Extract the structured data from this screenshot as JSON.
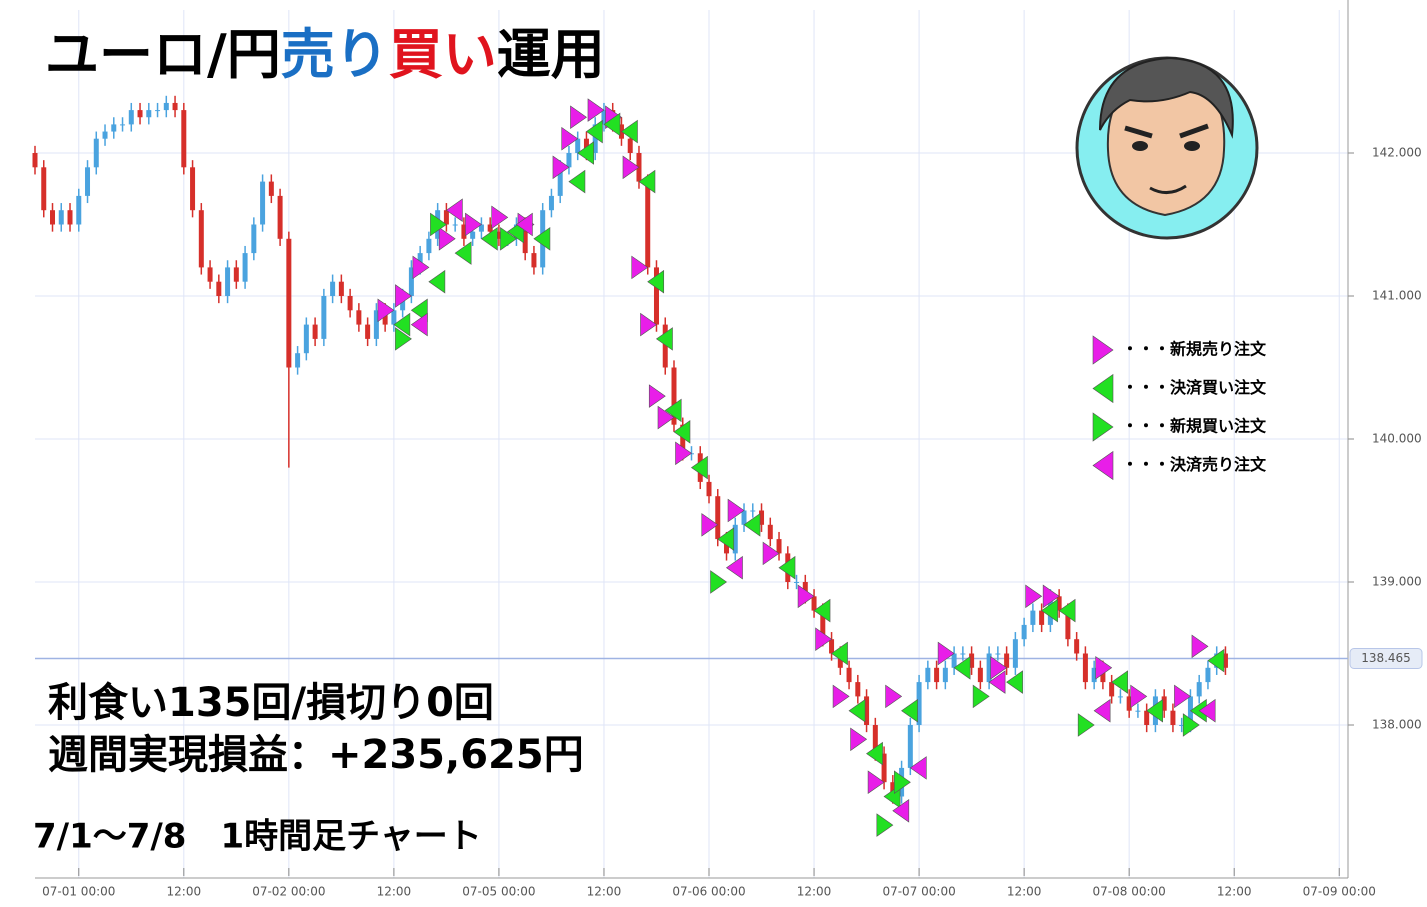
{
  "chart_data": {
    "type": "candlestick",
    "title_parts": [
      {
        "text": "ユーロ/円",
        "color": "#000000"
      },
      {
        "text": "売り",
        "color": "#1a6fc4"
      },
      {
        "text": "買い",
        "color": "#e0141e"
      },
      {
        "text": "運用",
        "color": "#000000"
      }
    ],
    "annotations": [
      "利食い135回/損切り0回",
      "週間実現損益：+235,625円",
      "7/1〜7/8　1時間足チャート"
    ],
    "up_color": "#4aa3df",
    "down_color": "#d62f2a",
    "grid": true,
    "xlim": [
      -5,
      145
    ],
    "ylim": [
      137,
      143
    ],
    "xticks": [
      {
        "value": 0,
        "label": "07-01 00:00"
      },
      {
        "value": 12,
        "label": "12:00"
      },
      {
        "value": 24,
        "label": "07-02 00:00"
      },
      {
        "value": 36,
        "label": "12:00"
      },
      {
        "value": 48,
        "label": "07-05 00:00"
      },
      {
        "value": 60,
        "label": "12:00"
      },
      {
        "value": 72,
        "label": "07-06 00:00"
      },
      {
        "value": 84,
        "label": "12:00"
      },
      {
        "value": 96,
        "label": "07-07 00:00"
      },
      {
        "value": 108,
        "label": "12:00"
      },
      {
        "value": 120,
        "label": "07-08 00:00"
      },
      {
        "value": 132,
        "label": "12:00"
      },
      {
        "value": 144,
        "label": "07-09 00:00"
      }
    ],
    "yticks": [
      {
        "value": 138,
        "label": "138.000"
      },
      {
        "value": 139,
        "label": "139.000"
      },
      {
        "value": 140,
        "label": "140.000"
      },
      {
        "value": 141,
        "label": "141.000"
      },
      {
        "value": 142,
        "label": "142.000"
      }
    ],
    "last_price": 138.465,
    "x": [
      -5,
      -4,
      -3,
      -2,
      -1,
      0,
      1,
      2,
      3,
      4,
      5,
      6,
      7,
      8,
      9,
      10,
      11,
      12,
      13,
      14,
      15,
      16,
      17,
      18,
      19,
      20,
      21,
      22,
      23,
      24,
      25,
      26,
      27,
      28,
      29,
      30,
      31,
      32,
      33,
      34,
      35,
      36,
      37,
      38,
      39,
      40,
      41,
      42,
      43,
      44,
      45,
      46,
      47,
      48,
      49,
      50,
      51,
      52,
      53,
      54,
      55,
      56,
      57,
      58,
      59,
      60,
      61,
      62,
      63,
      64,
      65,
      66,
      67,
      68,
      69,
      70,
      71,
      72,
      73,
      74,
      75,
      76,
      77,
      78,
      79,
      80,
      81,
      82,
      83,
      84,
      85,
      86,
      87,
      88,
      89,
      90,
      91,
      92,
      93,
      94,
      95,
      96,
      97,
      98,
      99,
      100,
      101,
      102,
      103,
      104,
      105,
      106,
      107,
      108,
      109,
      110,
      111,
      112,
      113,
      114,
      115,
      116,
      117,
      118,
      119,
      120,
      121,
      122,
      123,
      124,
      125,
      126,
      127,
      128,
      129,
      130,
      131
    ],
    "ohlc": [
      [
        142.0,
        142.05,
        141.85,
        141.9
      ],
      [
        141.9,
        141.95,
        141.55,
        141.6
      ],
      [
        141.6,
        141.65,
        141.45,
        141.5
      ],
      [
        141.5,
        141.65,
        141.45,
        141.6
      ],
      [
        141.6,
        141.65,
        141.45,
        141.5
      ],
      [
        141.5,
        141.75,
        141.45,
        141.7
      ],
      [
        141.7,
        141.95,
        141.65,
        141.9
      ],
      [
        141.9,
        142.15,
        141.85,
        142.1
      ],
      [
        142.1,
        142.2,
        142.05,
        142.15
      ],
      [
        142.15,
        142.25,
        142.1,
        142.2
      ],
      [
        142.2,
        142.25,
        142.15,
        142.2
      ],
      [
        142.2,
        142.35,
        142.15,
        142.3
      ],
      [
        142.3,
        142.35,
        142.2,
        142.25
      ],
      [
        142.25,
        142.35,
        142.2,
        142.3
      ],
      [
        142.3,
        142.35,
        142.25,
        142.3
      ],
      [
        142.3,
        142.4,
        142.25,
        142.35
      ],
      [
        142.35,
        142.4,
        142.25,
        142.3
      ],
      [
        142.3,
        142.35,
        141.85,
        141.9
      ],
      [
        141.9,
        141.95,
        141.55,
        141.6
      ],
      [
        141.6,
        141.65,
        141.15,
        141.2
      ],
      [
        141.2,
        141.25,
        141.05,
        141.1
      ],
      [
        141.1,
        141.15,
        140.95,
        141.0
      ],
      [
        141.0,
        141.25,
        140.95,
        141.2
      ],
      [
        141.2,
        141.25,
        141.05,
        141.1
      ],
      [
        141.1,
        141.35,
        141.05,
        141.3
      ],
      [
        141.3,
        141.55,
        141.25,
        141.5
      ],
      [
        141.5,
        141.85,
        141.45,
        141.8
      ],
      [
        141.8,
        141.85,
        141.65,
        141.7
      ],
      [
        141.7,
        141.75,
        141.35,
        141.4
      ],
      [
        141.4,
        141.45,
        139.8,
        140.5
      ],
      [
        140.5,
        140.65,
        140.45,
        140.6
      ],
      [
        140.6,
        140.85,
        140.55,
        140.8
      ],
      [
        140.8,
        140.85,
        140.65,
        140.7
      ],
      [
        140.7,
        141.05,
        140.65,
        141.0
      ],
      [
        141.0,
        141.15,
        140.95,
        141.1
      ],
      [
        141.1,
        141.15,
        140.95,
        141.0
      ],
      [
        141.0,
        141.05,
        140.85,
        140.9
      ],
      [
        140.9,
        140.95,
        140.75,
        140.8
      ],
      [
        140.8,
        140.85,
        140.65,
        140.7
      ],
      [
        140.7,
        140.95,
        140.65,
        140.9
      ],
      [
        140.9,
        140.95,
        140.75,
        140.8
      ],
      [
        140.8,
        140.95,
        140.75,
        140.9
      ],
      [
        140.9,
        141.05,
        140.85,
        141.0
      ],
      [
        141.0,
        141.25,
        140.95,
        141.2
      ],
      [
        141.2,
        141.35,
        141.15,
        141.3
      ],
      [
        141.3,
        141.45,
        141.25,
        141.4
      ],
      [
        141.4,
        141.65,
        141.35,
        141.6
      ],
      [
        141.6,
        141.65,
        141.45,
        141.5
      ],
      [
        141.5,
        141.55,
        141.45,
        141.5
      ],
      [
        141.5,
        141.55,
        141.35,
        141.4
      ],
      [
        141.4,
        141.5,
        141.35,
        141.45
      ],
      [
        141.45,
        141.55,
        141.4,
        141.5
      ],
      [
        141.5,
        141.55,
        141.4,
        141.45
      ],
      [
        141.45,
        141.5,
        141.35,
        141.4
      ],
      [
        141.4,
        141.45,
        141.35,
        141.4
      ],
      [
        141.4,
        141.55,
        141.35,
        141.5
      ],
      [
        141.5,
        141.55,
        141.25,
        141.3
      ],
      [
        141.3,
        141.35,
        141.15,
        141.2
      ],
      [
        141.2,
        141.65,
        141.15,
        141.6
      ],
      [
        141.6,
        141.75,
        141.55,
        141.7
      ],
      [
        141.7,
        141.95,
        141.65,
        141.9
      ],
      [
        141.9,
        142.05,
        141.85,
        142.0
      ],
      [
        142.0,
        142.15,
        141.95,
        142.1
      ],
      [
        142.1,
        142.15,
        141.95,
        142.0
      ],
      [
        142.0,
        142.25,
        141.95,
        142.2
      ],
      [
        142.2,
        142.35,
        142.15,
        142.3
      ],
      [
        142.3,
        142.35,
        142.15,
        142.2
      ],
      [
        142.2,
        142.25,
        142.05,
        142.1
      ],
      [
        142.1,
        142.15,
        141.95,
        142.0
      ],
      [
        142.0,
        142.05,
        141.75,
        141.8
      ],
      [
        141.8,
        141.85,
        141.15,
        141.2
      ],
      [
        141.2,
        141.25,
        140.75,
        140.8
      ],
      [
        140.8,
        140.85,
        140.45,
        140.5
      ],
      [
        140.5,
        140.55,
        140.05,
        140.1
      ],
      [
        140.1,
        140.15,
        139.85,
        139.9
      ],
      [
        139.9,
        139.95,
        139.85,
        139.9
      ],
      [
        139.9,
        139.95,
        139.65,
        139.7
      ],
      [
        139.7,
        139.75,
        139.55,
        139.6
      ],
      [
        139.6,
        139.65,
        139.25,
        139.3
      ],
      [
        139.3,
        139.35,
        139.15,
        139.2
      ],
      [
        139.2,
        139.45,
        139.15,
        139.4
      ],
      [
        139.4,
        139.55,
        139.35,
        139.5
      ],
      [
        139.5,
        139.55,
        139.45,
        139.5
      ],
      [
        139.5,
        139.55,
        139.35,
        139.4
      ],
      [
        139.4,
        139.45,
        139.25,
        139.3
      ],
      [
        139.3,
        139.35,
        139.15,
        139.2
      ],
      [
        139.2,
        139.25,
        138.95,
        139.0
      ],
      [
        139.0,
        139.05,
        138.95,
        139.0
      ],
      [
        139.0,
        139.05,
        138.85,
        138.9
      ],
      [
        138.9,
        138.95,
        138.75,
        138.8
      ],
      [
        138.8,
        138.85,
        138.55,
        138.6
      ],
      [
        138.6,
        138.65,
        138.45,
        138.5
      ],
      [
        138.5,
        138.55,
        138.35,
        138.4
      ],
      [
        138.4,
        138.45,
        138.25,
        138.3
      ],
      [
        138.3,
        138.35,
        138.15,
        138.2
      ],
      [
        138.2,
        138.25,
        137.95,
        138.0
      ],
      [
        138.0,
        138.05,
        137.75,
        137.8
      ],
      [
        137.8,
        137.85,
        137.55,
        137.6
      ],
      [
        137.6,
        137.65,
        137.45,
        137.5
      ],
      [
        137.5,
        137.75,
        137.45,
        137.7
      ],
      [
        137.7,
        138.05,
        137.65,
        138.0
      ],
      [
        138.0,
        138.35,
        137.95,
        138.3
      ],
      [
        138.3,
        138.45,
        138.25,
        138.4
      ],
      [
        138.4,
        138.45,
        138.25,
        138.3
      ],
      [
        138.3,
        138.45,
        138.25,
        138.4
      ],
      [
        138.4,
        138.55,
        138.35,
        138.5
      ],
      [
        138.5,
        138.55,
        138.45,
        138.5
      ],
      [
        138.5,
        138.55,
        138.35,
        138.4
      ],
      [
        138.4,
        138.45,
        138.25,
        138.3
      ],
      [
        138.3,
        138.55,
        138.25,
        138.5
      ],
      [
        138.5,
        138.55,
        138.45,
        138.5
      ],
      [
        138.5,
        138.55,
        138.35,
        138.4
      ],
      [
        138.4,
        138.65,
        138.35,
        138.6
      ],
      [
        138.6,
        138.75,
        138.55,
        138.7
      ],
      [
        138.7,
        138.85,
        138.65,
        138.8
      ],
      [
        138.8,
        138.85,
        138.65,
        138.7
      ],
      [
        138.7,
        138.95,
        138.65,
        138.9
      ],
      [
        138.9,
        138.95,
        138.75,
        138.8
      ],
      [
        138.8,
        138.85,
        138.55,
        138.6
      ],
      [
        138.6,
        138.65,
        138.45,
        138.5
      ],
      [
        138.5,
        138.55,
        138.25,
        138.3
      ],
      [
        138.3,
        138.45,
        138.25,
        138.4
      ],
      [
        138.4,
        138.45,
        138.25,
        138.3
      ],
      [
        138.3,
        138.35,
        138.15,
        138.2
      ],
      [
        138.2,
        138.25,
        138.15,
        138.2
      ],
      [
        138.2,
        138.25,
        138.05,
        138.1
      ],
      [
        138.1,
        138.15,
        138.05,
        138.1
      ],
      [
        138.1,
        138.15,
        137.95,
        138.0
      ],
      [
        138.0,
        138.25,
        137.95,
        138.2
      ],
      [
        138.2,
        138.25,
        138.05,
        138.1
      ],
      [
        138.1,
        138.15,
        137.95,
        138.0
      ],
      [
        138.0,
        138.05,
        137.95,
        138.0
      ],
      [
        138.0,
        138.25,
        137.95,
        138.2
      ],
      [
        138.2,
        138.35,
        138.15,
        138.3
      ],
      [
        138.3,
        138.45,
        138.25,
        138.4
      ],
      [
        138.4,
        138.55,
        138.35,
        138.5
      ],
      [
        138.5,
        138.55,
        138.35,
        138.4
      ]
    ],
    "markers": [
      {
        "name": "・・・新規売り注文",
        "color": "#e81ee8",
        "direction": "right",
        "x": [
          36,
          38,
          40,
          43,
          46,
          49,
          52,
          56,
          57,
          58,
          60,
          62,
          64,
          65,
          66,
          67,
          68,
          70,
          73,
          76,
          80,
          84,
          86,
          88,
          90,
          92,
          94,
          100,
          106,
          110,
          112,
          118,
          122,
          127,
          129
        ],
        "values": [
          140.9,
          141.0,
          141.2,
          141.4,
          141.5,
          141.55,
          141.5,
          141.9,
          142.1,
          142.25,
          142.3,
          142.25,
          141.9,
          141.2,
          140.8,
          140.3,
          140.15,
          139.9,
          139.4,
          139.5,
          139.2,
          138.9,
          138.6,
          138.2,
          137.9,
          137.6,
          138.2,
          138.5,
          138.4,
          138.9,
          138.9,
          138.4,
          138.2,
          138.2,
          138.55
        ]
      },
      {
        "name": "・・・決済買い注文",
        "color": "#22e022",
        "direction": "left",
        "x": [
          36,
          38,
          40,
          43,
          46,
          49,
          52,
          56,
          57,
          58,
          60,
          62,
          64,
          65,
          66,
          67,
          68,
          70,
          73,
          76,
          80,
          84,
          86,
          88,
          90,
          92,
          94,
          100,
          106,
          110,
          112,
          118,
          122,
          127,
          129
        ],
        "values": [
          140.8,
          140.9,
          141.1,
          141.3,
          141.4,
          141.45,
          141.4,
          141.8,
          142.0,
          142.15,
          142.2,
          142.15,
          141.8,
          141.1,
          140.7,
          140.2,
          140.05,
          139.8,
          139.3,
          139.4,
          139.1,
          138.8,
          138.5,
          138.1,
          137.8,
          137.5,
          138.1,
          138.4,
          138.3,
          138.8,
          138.8,
          138.3,
          138.1,
          138.1,
          138.45
        ]
      },
      {
        "name": "・・・新規買い注文",
        "color": "#22e022",
        "direction": "right",
        "x": [
          38,
          42,
          50,
          74,
          93,
          95,
          104,
          116,
          128
        ],
        "values": [
          140.7,
          141.5,
          141.4,
          139.0,
          137.3,
          137.6,
          138.2,
          138.0,
          138.0
        ]
      },
      {
        "name": "・・・決済売り注文",
        "color": "#e81ee8",
        "direction": "left",
        "x": [
          38,
          42,
          50,
          74,
          93,
          95,
          104,
          116,
          128
        ],
        "values": [
          140.8,
          141.6,
          141.5,
          139.1,
          137.4,
          137.7,
          138.3,
          138.1,
          138.1
        ]
      }
    ]
  }
}
